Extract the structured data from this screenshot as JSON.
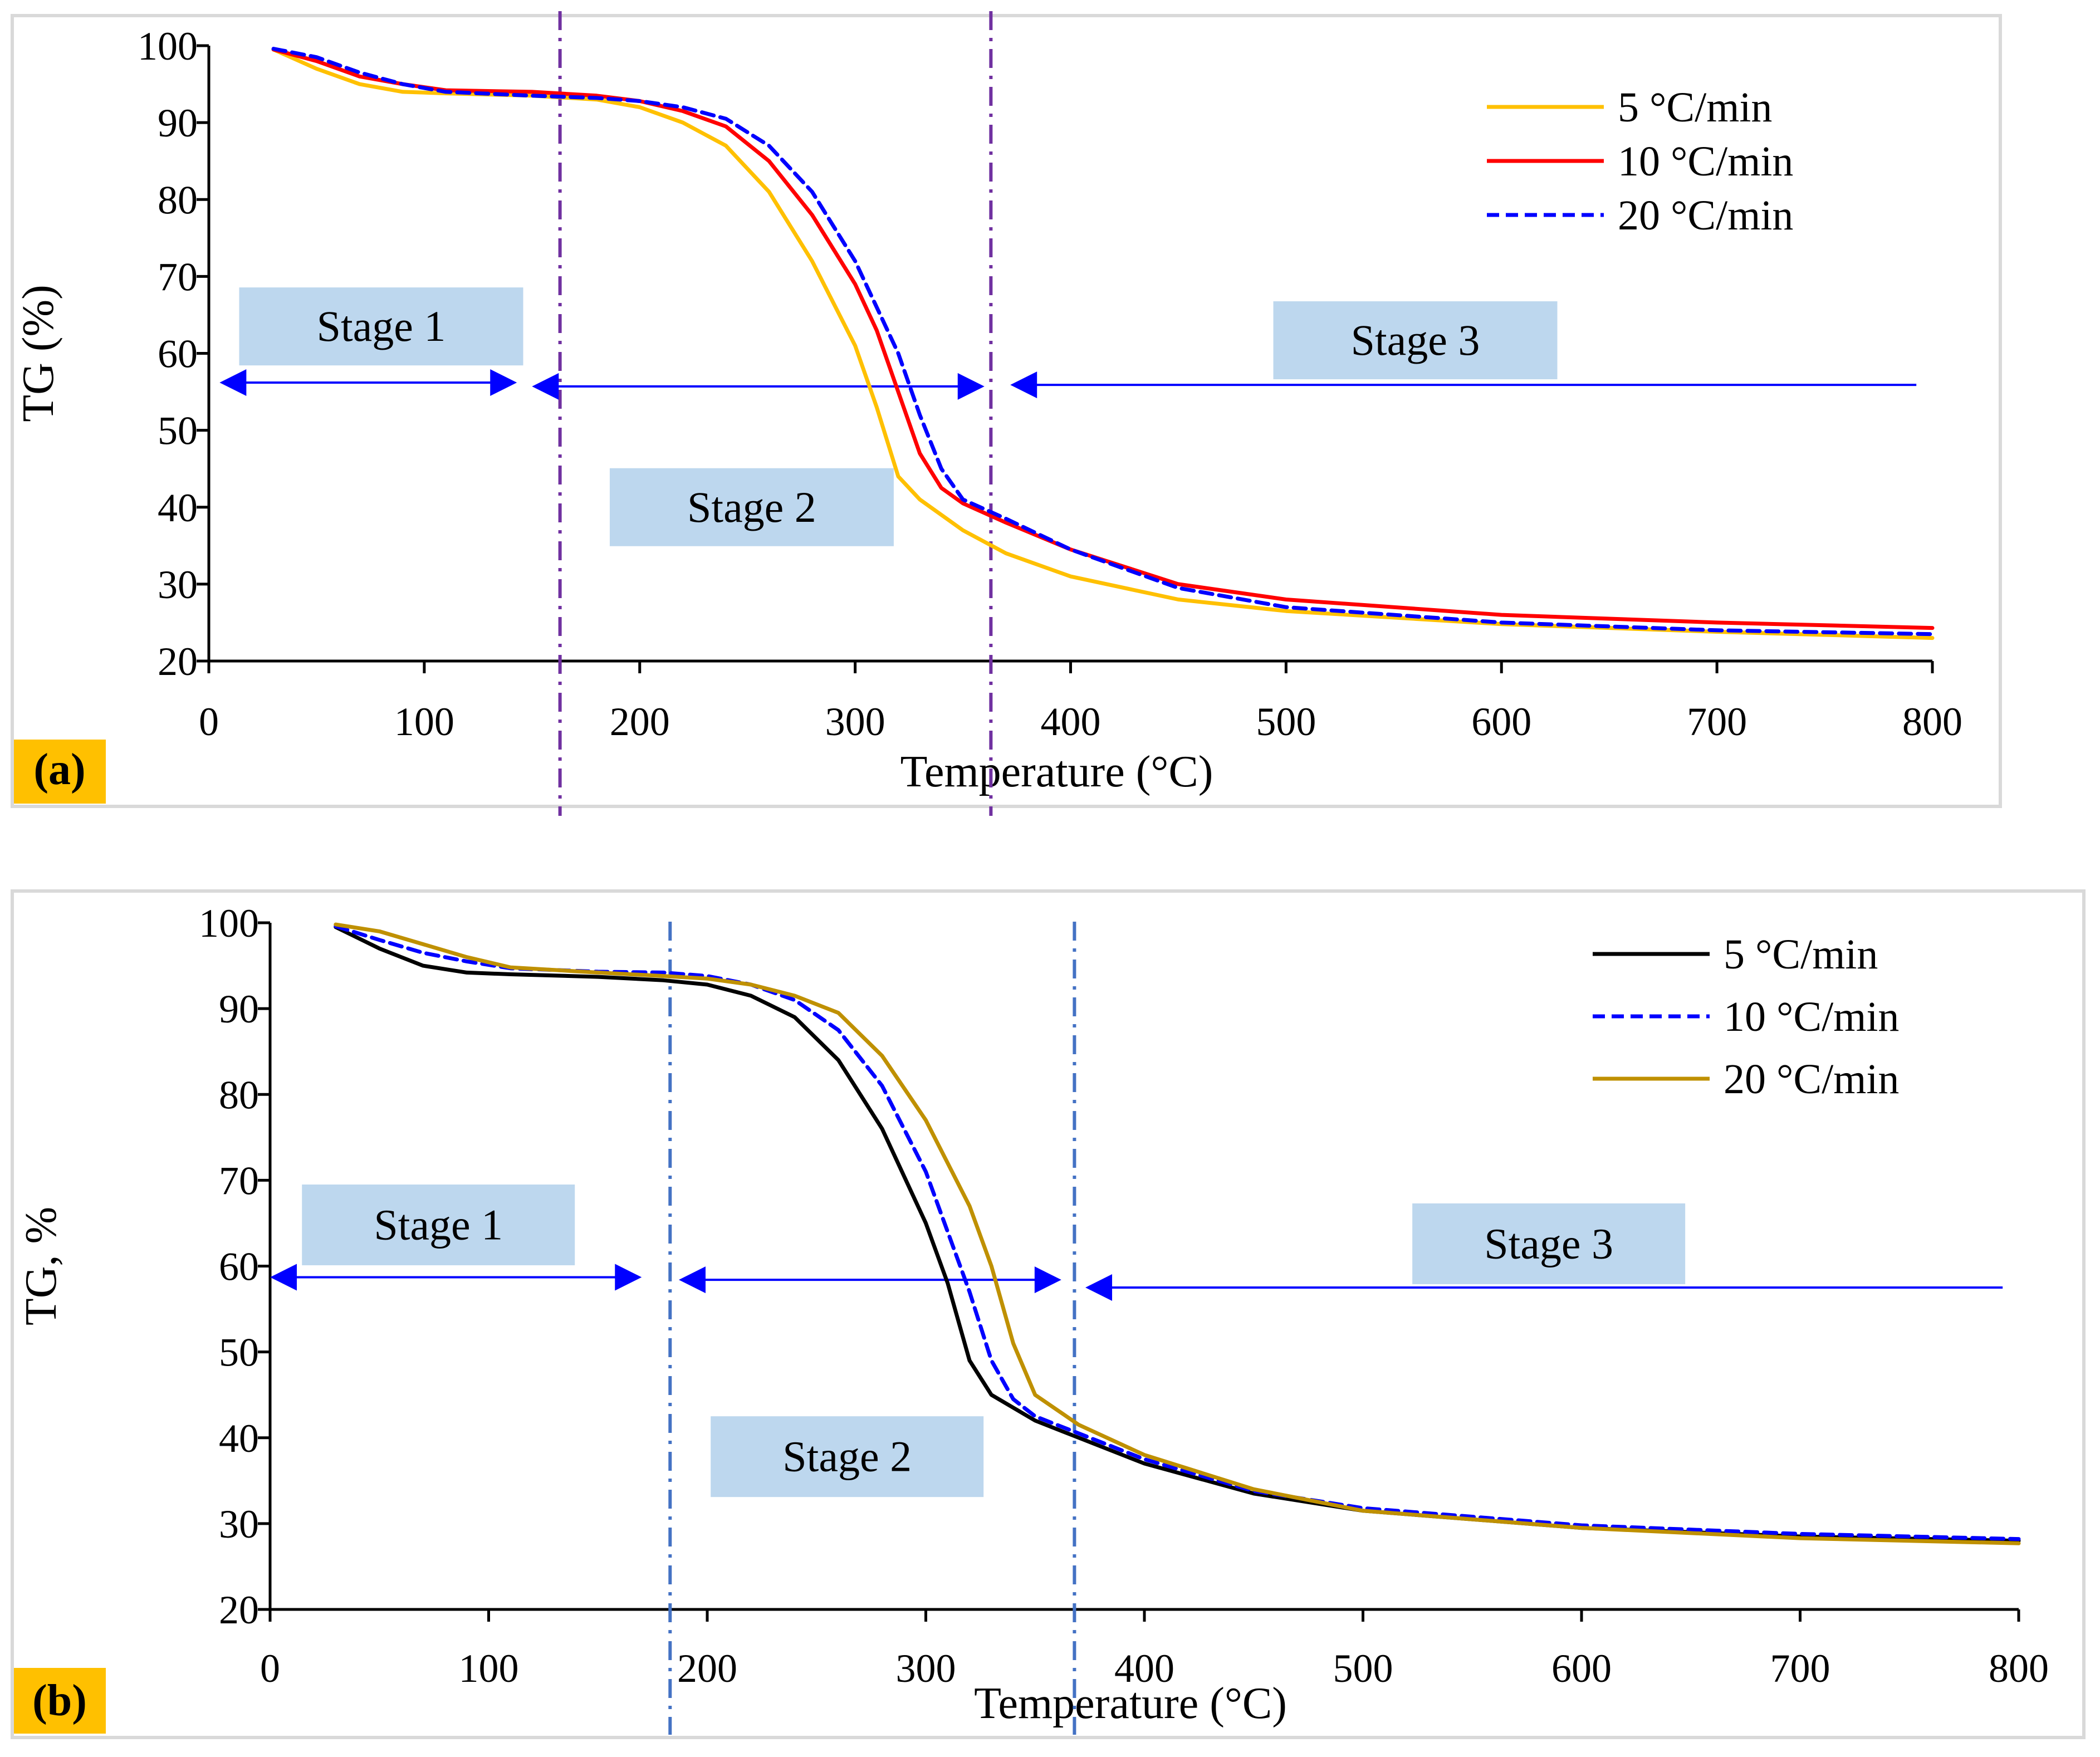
{
  "chart_data": [
    {
      "type": "line",
      "panel_label": "(a)",
      "xlabel": "Temperature (°C)",
      "ylabel": "TG (%)",
      "xlim": [
        0,
        800
      ],
      "ylim": [
        20,
        100
      ],
      "xticks": [
        "0",
        "100",
        "200",
        "300",
        "400",
        "500",
        "600",
        "700",
        "800"
      ],
      "yticks": [
        "20",
        "30",
        "40",
        "50",
        "60",
        "70",
        "80",
        "90",
        "100"
      ],
      "legend_position": "top-right",
      "grid": false,
      "series": [
        {
          "name": "5 °C/min",
          "color": "#FFC000",
          "dash": "solid",
          "x": [
            30,
            50,
            70,
            90,
            110,
            150,
            180,
            200,
            220,
            240,
            260,
            280,
            300,
            310,
            320,
            330,
            350,
            370,
            400,
            450,
            500,
            600,
            700,
            800
          ],
          "y": [
            99.5,
            97.0,
            95.0,
            94.0,
            93.8,
            93.5,
            93.0,
            92.0,
            90.0,
            87.0,
            81.0,
            72.0,
            61.0,
            53.0,
            44.0,
            41.0,
            37.0,
            34.0,
            31.0,
            28.0,
            26.5,
            24.8,
            23.8,
            23.0
          ]
        },
        {
          "name": "10 °C/min",
          "color": "#FF0000",
          "dash": "solid",
          "x": [
            30,
            50,
            70,
            90,
            110,
            150,
            180,
            200,
            220,
            240,
            260,
            280,
            300,
            310,
            320,
            330,
            340,
            350,
            370,
            400,
            450,
            500,
            600,
            700,
            800
          ],
          "y": [
            99.5,
            98.0,
            96.0,
            95.0,
            94.2,
            94.0,
            93.5,
            92.8,
            91.5,
            89.5,
            85.0,
            78.0,
            69.0,
            63.0,
            55.0,
            47.0,
            42.5,
            40.5,
            38.0,
            34.5,
            30.0,
            28.0,
            26.0,
            25.0,
            24.3
          ]
        },
        {
          "name": "20 °C/min",
          "color": "#0000FF",
          "dash": "dashed",
          "x": [
            30,
            50,
            70,
            90,
            110,
            150,
            180,
            200,
            220,
            240,
            260,
            280,
            300,
            320,
            330,
            340,
            350,
            370,
            400,
            450,
            500,
            600,
            700,
            800
          ],
          "y": [
            99.6,
            98.5,
            96.5,
            95.0,
            94.0,
            93.5,
            93.2,
            92.8,
            92.0,
            90.5,
            87.0,
            81.0,
            72.0,
            60.0,
            52.0,
            45.0,
            41.0,
            38.5,
            34.5,
            29.5,
            27.0,
            25.0,
            24.0,
            23.5
          ]
        }
      ],
      "stage_boundaries_x": [
        163,
        363
      ],
      "stage_lines_color": "#7030A0",
      "arrows": [
        {
          "from": 5,
          "to": 143,
          "y": 56.2
        },
        {
          "from": 150,
          "to": 360,
          "y": 55.7
        },
        {
          "from": 372,
          "to": 800,
          "y": 55.9
        }
      ],
      "stage_labels": [
        {
          "text": "Stage 1",
          "x": 80,
          "y": 63.5
        },
        {
          "text": "Stage 2",
          "x": 252,
          "y": 40.0
        },
        {
          "text": "Stage 3",
          "x": 560,
          "y": 61.7
        }
      ]
    },
    {
      "type": "line",
      "panel_label": "(b)",
      "xlabel": "Temperature (°C)",
      "ylabel": "TG, %",
      "xlim": [
        0,
        800
      ],
      "ylim": [
        20,
        100
      ],
      "xticks": [
        "0",
        "100",
        "200",
        "300",
        "400",
        "500",
        "600",
        "700",
        "800"
      ],
      "yticks": [
        "20",
        "30",
        "40",
        "50",
        "60",
        "70",
        "80",
        "90",
        "100"
      ],
      "legend_position": "top-right",
      "grid": false,
      "series": [
        {
          "name": "5 °C/min",
          "color": "#000000",
          "dash": "solid",
          "x": [
            30,
            50,
            70,
            90,
            110,
            150,
            180,
            200,
            220,
            240,
            260,
            280,
            300,
            310,
            320,
            330,
            350,
            370,
            400,
            450,
            500,
            600,
            700,
            800
          ],
          "y": [
            99.5,
            97.0,
            95.0,
            94.2,
            94.0,
            93.7,
            93.3,
            92.8,
            91.5,
            89.0,
            84.0,
            76.0,
            65.0,
            58.0,
            49.0,
            45.0,
            42.0,
            40.0,
            37.0,
            33.5,
            31.5,
            29.5,
            28.5,
            28.0
          ]
        },
        {
          "name": "10 °C/min",
          "color": "#0000FF",
          "dash": "dashed",
          "x": [
            30,
            50,
            70,
            90,
            110,
            150,
            180,
            200,
            220,
            240,
            260,
            280,
            300,
            320,
            330,
            340,
            350,
            370,
            400,
            450,
            500,
            600,
            700,
            800
          ],
          "y": [
            99.6,
            98.0,
            96.5,
            95.5,
            94.7,
            94.3,
            94.2,
            93.8,
            92.8,
            91.0,
            87.5,
            81.0,
            71.0,
            57.0,
            49.0,
            44.5,
            42.5,
            40.5,
            37.5,
            33.8,
            31.8,
            29.8,
            28.8,
            28.2
          ]
        },
        {
          "name": "20 °C/min",
          "color": "#BF9000",
          "dash": "solid",
          "x": [
            30,
            50,
            70,
            90,
            110,
            150,
            180,
            200,
            220,
            240,
            260,
            280,
            300,
            320,
            330,
            340,
            350,
            370,
            400,
            450,
            500,
            600,
            700,
            800
          ],
          "y": [
            99.8,
            99.0,
            97.5,
            96.0,
            94.8,
            94.2,
            93.8,
            93.5,
            92.8,
            91.5,
            89.5,
            84.5,
            77.0,
            67.0,
            60.0,
            51.0,
            45.0,
            41.5,
            38.0,
            34.0,
            31.5,
            29.5,
            28.3,
            27.7
          ]
        }
      ],
      "stage_boundaries_x": [
        183,
        368
      ],
      "stage_lines_color": "#4472C4",
      "arrows": [
        {
          "from": 0,
          "to": 170,
          "y": 58.7
        },
        {
          "from": 187,
          "to": 362,
          "y": 58.4
        },
        {
          "from": 373,
          "to": 800,
          "y": 57.5
        }
      ],
      "stage_labels": [
        {
          "text": "Stage 1",
          "x": 77,
          "y": 64.8
        },
        {
          "text": "Stage 2",
          "x": 264,
          "y": 37.8
        },
        {
          "text": "Stage 3",
          "x": 585,
          "y": 62.6
        }
      ]
    }
  ]
}
